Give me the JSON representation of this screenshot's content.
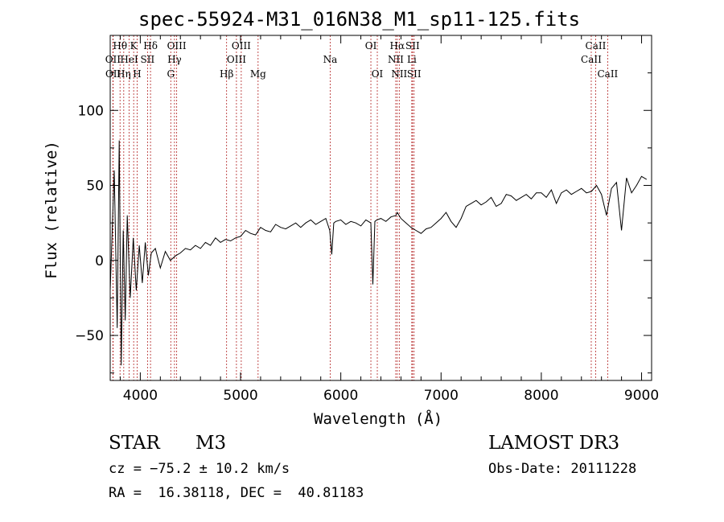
{
  "chart_data": {
    "type": "line",
    "title": "spec-55924-M31_016N38_M1_sp11-125.fits",
    "xlabel": "Wavelength (Å)",
    "ylabel": "Flux (relative)",
    "xlim": [
      3700,
      9100
    ],
    "ylim": [
      -80,
      150
    ],
    "xticks": [
      4000,
      5000,
      6000,
      7000,
      8000,
      9000
    ],
    "xtick_labels": [
      "4000",
      "5000",
      "6000",
      "7000",
      "8000",
      "9000"
    ],
    "yticks": [
      -50,
      0,
      50,
      100
    ],
    "ytick_labels": [
      "−50",
      "0",
      "50",
      "100"
    ],
    "grid": false,
    "series": [
      {
        "name": "flux",
        "x": [
          3700,
          3740,
          3770,
          3790,
          3810,
          3830,
          3850,
          3870,
          3900,
          3930,
          3960,
          3990,
          4020,
          4050,
          4080,
          4110,
          4150,
          4200,
          4250,
          4300,
          4350,
          4400,
          4450,
          4500,
          4550,
          4600,
          4650,
          4700,
          4750,
          4800,
          4850,
          4900,
          4950,
          5000,
          5050,
          5100,
          5150,
          5200,
          5250,
          5300,
          5350,
          5400,
          5450,
          5500,
          5550,
          5600,
          5650,
          5700,
          5750,
          5800,
          5850,
          5890,
          5910,
          5930,
          5950,
          6000,
          6050,
          6100,
          6150,
          6200,
          6250,
          6300,
          6320,
          6340,
          6360,
          6400,
          6450,
          6500,
          6550,
          6563,
          6600,
          6650,
          6700,
          6750,
          6800,
          6850,
          6900,
          6950,
          7000,
          7050,
          7100,
          7150,
          7200,
          7250,
          7300,
          7350,
          7400,
          7450,
          7500,
          7550,
          7600,
          7650,
          7700,
          7750,
          7800,
          7850,
          7900,
          7950,
          8000,
          8050,
          8100,
          8150,
          8200,
          8250,
          8300,
          8350,
          8400,
          8450,
          8500,
          8550,
          8600,
          8650,
          8700,
          8750,
          8800,
          8850,
          8900,
          8950,
          9000,
          9050
        ],
        "y": [
          -20,
          60,
          -45,
          80,
          -70,
          20,
          -40,
          30,
          -25,
          15,
          -20,
          10,
          -15,
          12,
          -10,
          5,
          8,
          -5,
          6,
          0,
          3,
          5,
          8,
          7,
          10,
          8,
          12,
          10,
          15,
          12,
          14,
          13,
          15,
          16,
          20,
          18,
          17,
          22,
          20,
          19,
          24,
          22,
          21,
          23,
          25,
          22,
          25,
          27,
          24,
          26,
          28,
          20,
          4,
          25,
          26,
          27,
          24,
          26,
          25,
          23,
          27,
          25,
          -16,
          26,
          27,
          28,
          26,
          29,
          30,
          32,
          28,
          25,
          22,
          20,
          18,
          21,
          22,
          25,
          28,
          32,
          26,
          22,
          28,
          36,
          38,
          40,
          37,
          39,
          42,
          36,
          38,
          44,
          43,
          40,
          42,
          44,
          41,
          45,
          45,
          42,
          47,
          38,
          45,
          47,
          44,
          46,
          48,
          45,
          46,
          50,
          44,
          30,
          48,
          52,
          20,
          55,
          45,
          50,
          56,
          54
        ]
      }
    ],
    "line_markers": [
      {
        "label": "OII",
        "x": 3727,
        "row": 2
      },
      {
        "label": "OII",
        "x": 3729,
        "row": 3
      },
      {
        "label": "Hθ",
        "x": 3798,
        "row": 1
      },
      {
        "label": "Hη",
        "x": 3835,
        "row": 3
      },
      {
        "label": "HeI",
        "x": 3889,
        "row": 2
      },
      {
        "label": "K",
        "x": 3934,
        "row": 1
      },
      {
        "label": "H",
        "x": 3969,
        "row": 3
      },
      {
        "label": "SII",
        "x": 4072,
        "row": 2
      },
      {
        "label": "Hδ",
        "x": 4102,
        "row": 1
      },
      {
        "label": "G",
        "x": 4304,
        "row": 3
      },
      {
        "label": "Hγ",
        "x": 4341,
        "row": 2
      },
      {
        "label": "OIII",
        "x": 4363,
        "row": 1
      },
      {
        "label": "Hβ",
        "x": 4861,
        "row": 3
      },
      {
        "label": "OIII",
        "x": 4959,
        "row": 2
      },
      {
        "label": "OIII",
        "x": 5007,
        "row": 1
      },
      {
        "label": "Mg",
        "x": 5175,
        "row": 3
      },
      {
        "label": "Na",
        "x": 5894,
        "row": 2
      },
      {
        "label": "OI",
        "x": 6300,
        "row": 1
      },
      {
        "label": "OI",
        "x": 6364,
        "row": 3
      },
      {
        "label": "NII",
        "x": 6548,
        "row": 2
      },
      {
        "label": "Hα",
        "x": 6563,
        "row": 1
      },
      {
        "label": "NII",
        "x": 6583,
        "row": 3
      },
      {
        "label": "Li",
        "x": 6708,
        "row": 2
      },
      {
        "label": "SII",
        "x": 6716,
        "row": 1
      },
      {
        "label": "SII",
        "x": 6731,
        "row": 3
      },
      {
        "label": "CaII",
        "x": 8498,
        "row": 2
      },
      {
        "label": "CaII",
        "x": 8542,
        "row": 1
      },
      {
        "label": "CaII",
        "x": 8662,
        "row": 3
      }
    ]
  },
  "info": {
    "object_class": "STAR",
    "subclass": "M3",
    "survey": "LAMOST DR3",
    "redshift": "cz = −75.2 ± 10.2 km/s",
    "obs_date": "Obs-Date: 20111228",
    "coords": "RA =  16.38118, DEC =  40.81183"
  }
}
